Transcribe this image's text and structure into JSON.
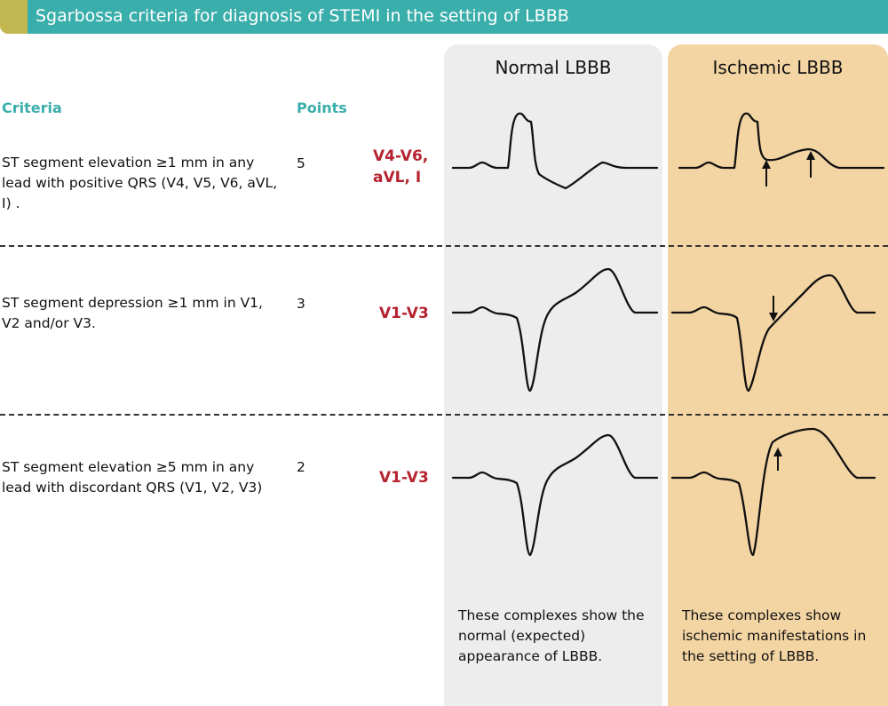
{
  "title": "Sgarbossa criteria for diagnosis of STEMI in the setting of LBBB",
  "colors": {
    "header": "#3aaeaa",
    "header_accent": "#c3b752",
    "lead_text": "#b5232f",
    "normal_panel": "#ededed",
    "ischemic_panel": "#f3d4a3"
  },
  "columns": {
    "criteria": "Criteria",
    "points": "Points"
  },
  "panels": {
    "normal": {
      "title": "Normal LBBB",
      "note": "These complexes show the normal (expected) appearance of LBBB."
    },
    "ischemic": {
      "title": "Ischemic LBBB",
      "note": "These complexes show ischemic manifestations in the setting of LBBB."
    }
  },
  "rows": [
    {
      "criterion": "ST segment elevation ≥1 mm in any lead with positive QRS (V4, V5, V6, aVL, I) .",
      "points": "5",
      "leads": "V4-V6, aVL, I"
    },
    {
      "criterion": "ST segment depression ≥1 mm in V1, V2 and/or V3.",
      "points": "3",
      "leads": "V1-V3"
    },
    {
      "criterion": "ST segment elevation ≥5 mm in any lead with discordant QRS (V1, V2, V3)",
      "points": "2",
      "leads": "V1-V3"
    }
  ]
}
